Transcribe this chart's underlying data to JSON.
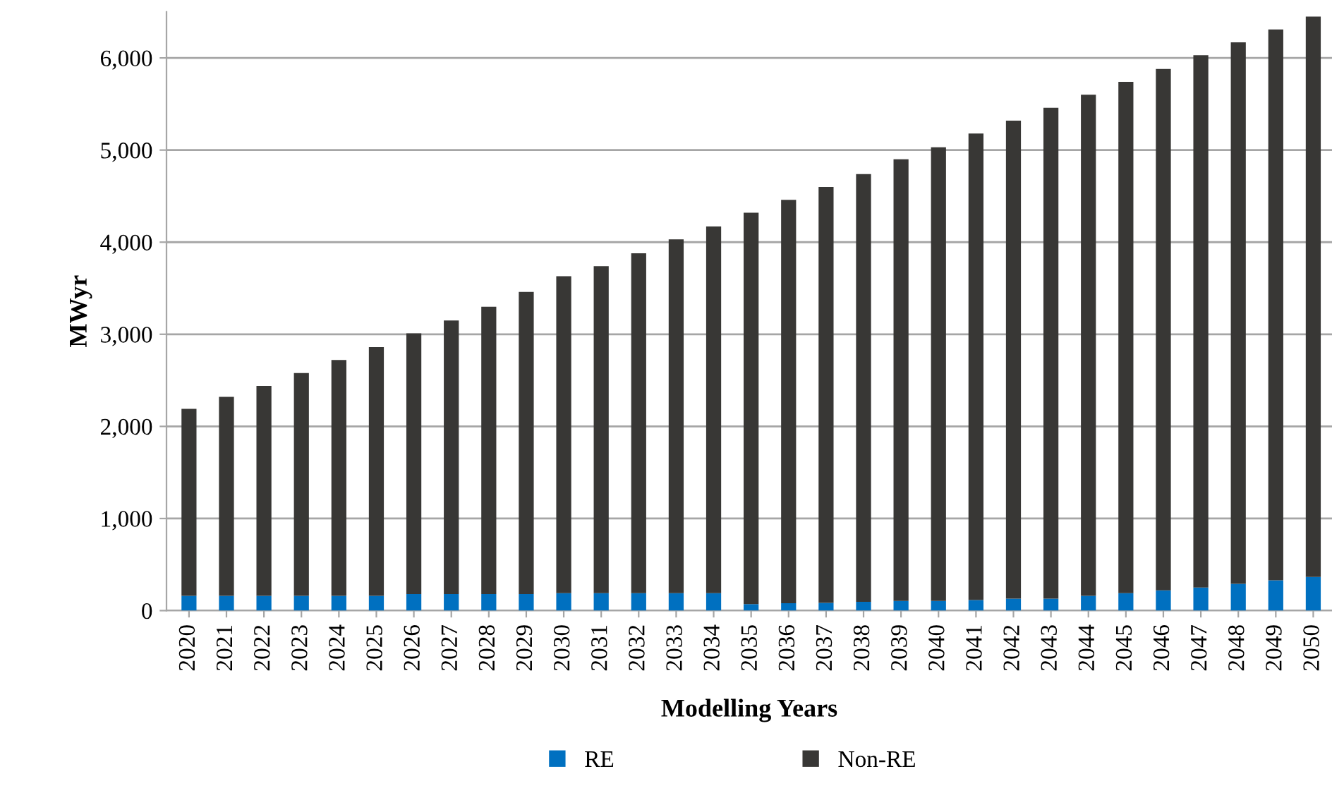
{
  "chart_data": {
    "type": "bar",
    "stacked": true,
    "xlabel": "Modelling Years",
    "ylabel": "MWyr",
    "categories": [
      "2020",
      "2021",
      "2022",
      "2023",
      "2024",
      "2025",
      "2026",
      "2027",
      "2028",
      "2029",
      "2030",
      "2031",
      "2032",
      "2033",
      "2034",
      "2035",
      "2036",
      "2037",
      "2038",
      "2039",
      "2040",
      "2041",
      "2042",
      "2043",
      "2044",
      "2045",
      "2046",
      "2047",
      "2048",
      "2049",
      "2050"
    ],
    "series": [
      {
        "name": "RE",
        "color": "#0070c0",
        "values": [
          160,
          160,
          160,
          160,
          160,
          160,
          180,
          180,
          180,
          180,
          190,
          190,
          190,
          190,
          190,
          70,
          80,
          85,
          95,
          105,
          105,
          115,
          130,
          130,
          160,
          190,
          220,
          250,
          290,
          330,
          365
        ]
      },
      {
        "name": "Non-RE",
        "color": "#383735",
        "values": [
          2030,
          2160,
          2280,
          2420,
          2560,
          2700,
          2830,
          2970,
          3120,
          3280,
          3440,
          3550,
          3690,
          3840,
          3980,
          4250,
          4380,
          4515,
          4645,
          4795,
          4925,
          5065,
          5190,
          5330,
          5440,
          5550,
          5660,
          5780,
          5880,
          5980,
          6085
        ]
      }
    ],
    "ylim": [
      0,
      6500
    ],
    "yticks": [
      {
        "value": 0,
        "label": "0"
      },
      {
        "value": 1000,
        "label": "1,000"
      },
      {
        "value": 2000,
        "label": "2,000"
      },
      {
        "value": 3000,
        "label": "3,000"
      },
      {
        "value": 4000,
        "label": "4,000"
      },
      {
        "value": 5000,
        "label": "5,000"
      },
      {
        "value": 6000,
        "label": "6,000"
      }
    ],
    "grid": "y",
    "legend": "bottom"
  }
}
